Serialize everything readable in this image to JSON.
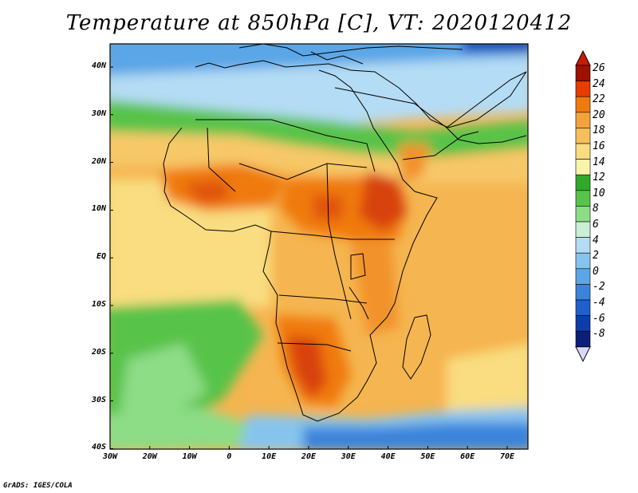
{
  "title": "Temperature at 850hPa [C], VT: 2020120412",
  "credit": "GrADS: IGES/COLA",
  "map": {
    "lat_labels": [
      "40N",
      "30N",
      "20N",
      "10N",
      "EQ",
      "10S",
      "20S",
      "30S",
      "40S"
    ],
    "lon_labels": [
      "30W",
      "20W",
      "10W",
      "0",
      "10E",
      "20E",
      "30E",
      "40E",
      "50E",
      "60E",
      "70E"
    ]
  },
  "colorbar": {
    "labels": [
      "26",
      "24",
      "22",
      "20",
      "18",
      "16",
      "14",
      "12",
      "10",
      "8",
      "6",
      "4",
      "2",
      "0",
      "-2",
      "-4",
      "-6",
      "-8"
    ],
    "colors": [
      "#a01000",
      "#e83c00",
      "#f07a10",
      "#f4a23c",
      "#f6bf5c",
      "#f9dd80",
      "#fbf2ac",
      "#2fa92a",
      "#58c34a",
      "#8ddc86",
      "#c8f0d6",
      "#b4dcf4",
      "#86c4ee",
      "#5aa6e6",
      "#3a84dc",
      "#2060cc",
      "#103caa",
      "#0c1e7a",
      "#d8d8f8"
    ],
    "under_color": "#d8d8f8",
    "over_color": "#c81c00"
  }
}
